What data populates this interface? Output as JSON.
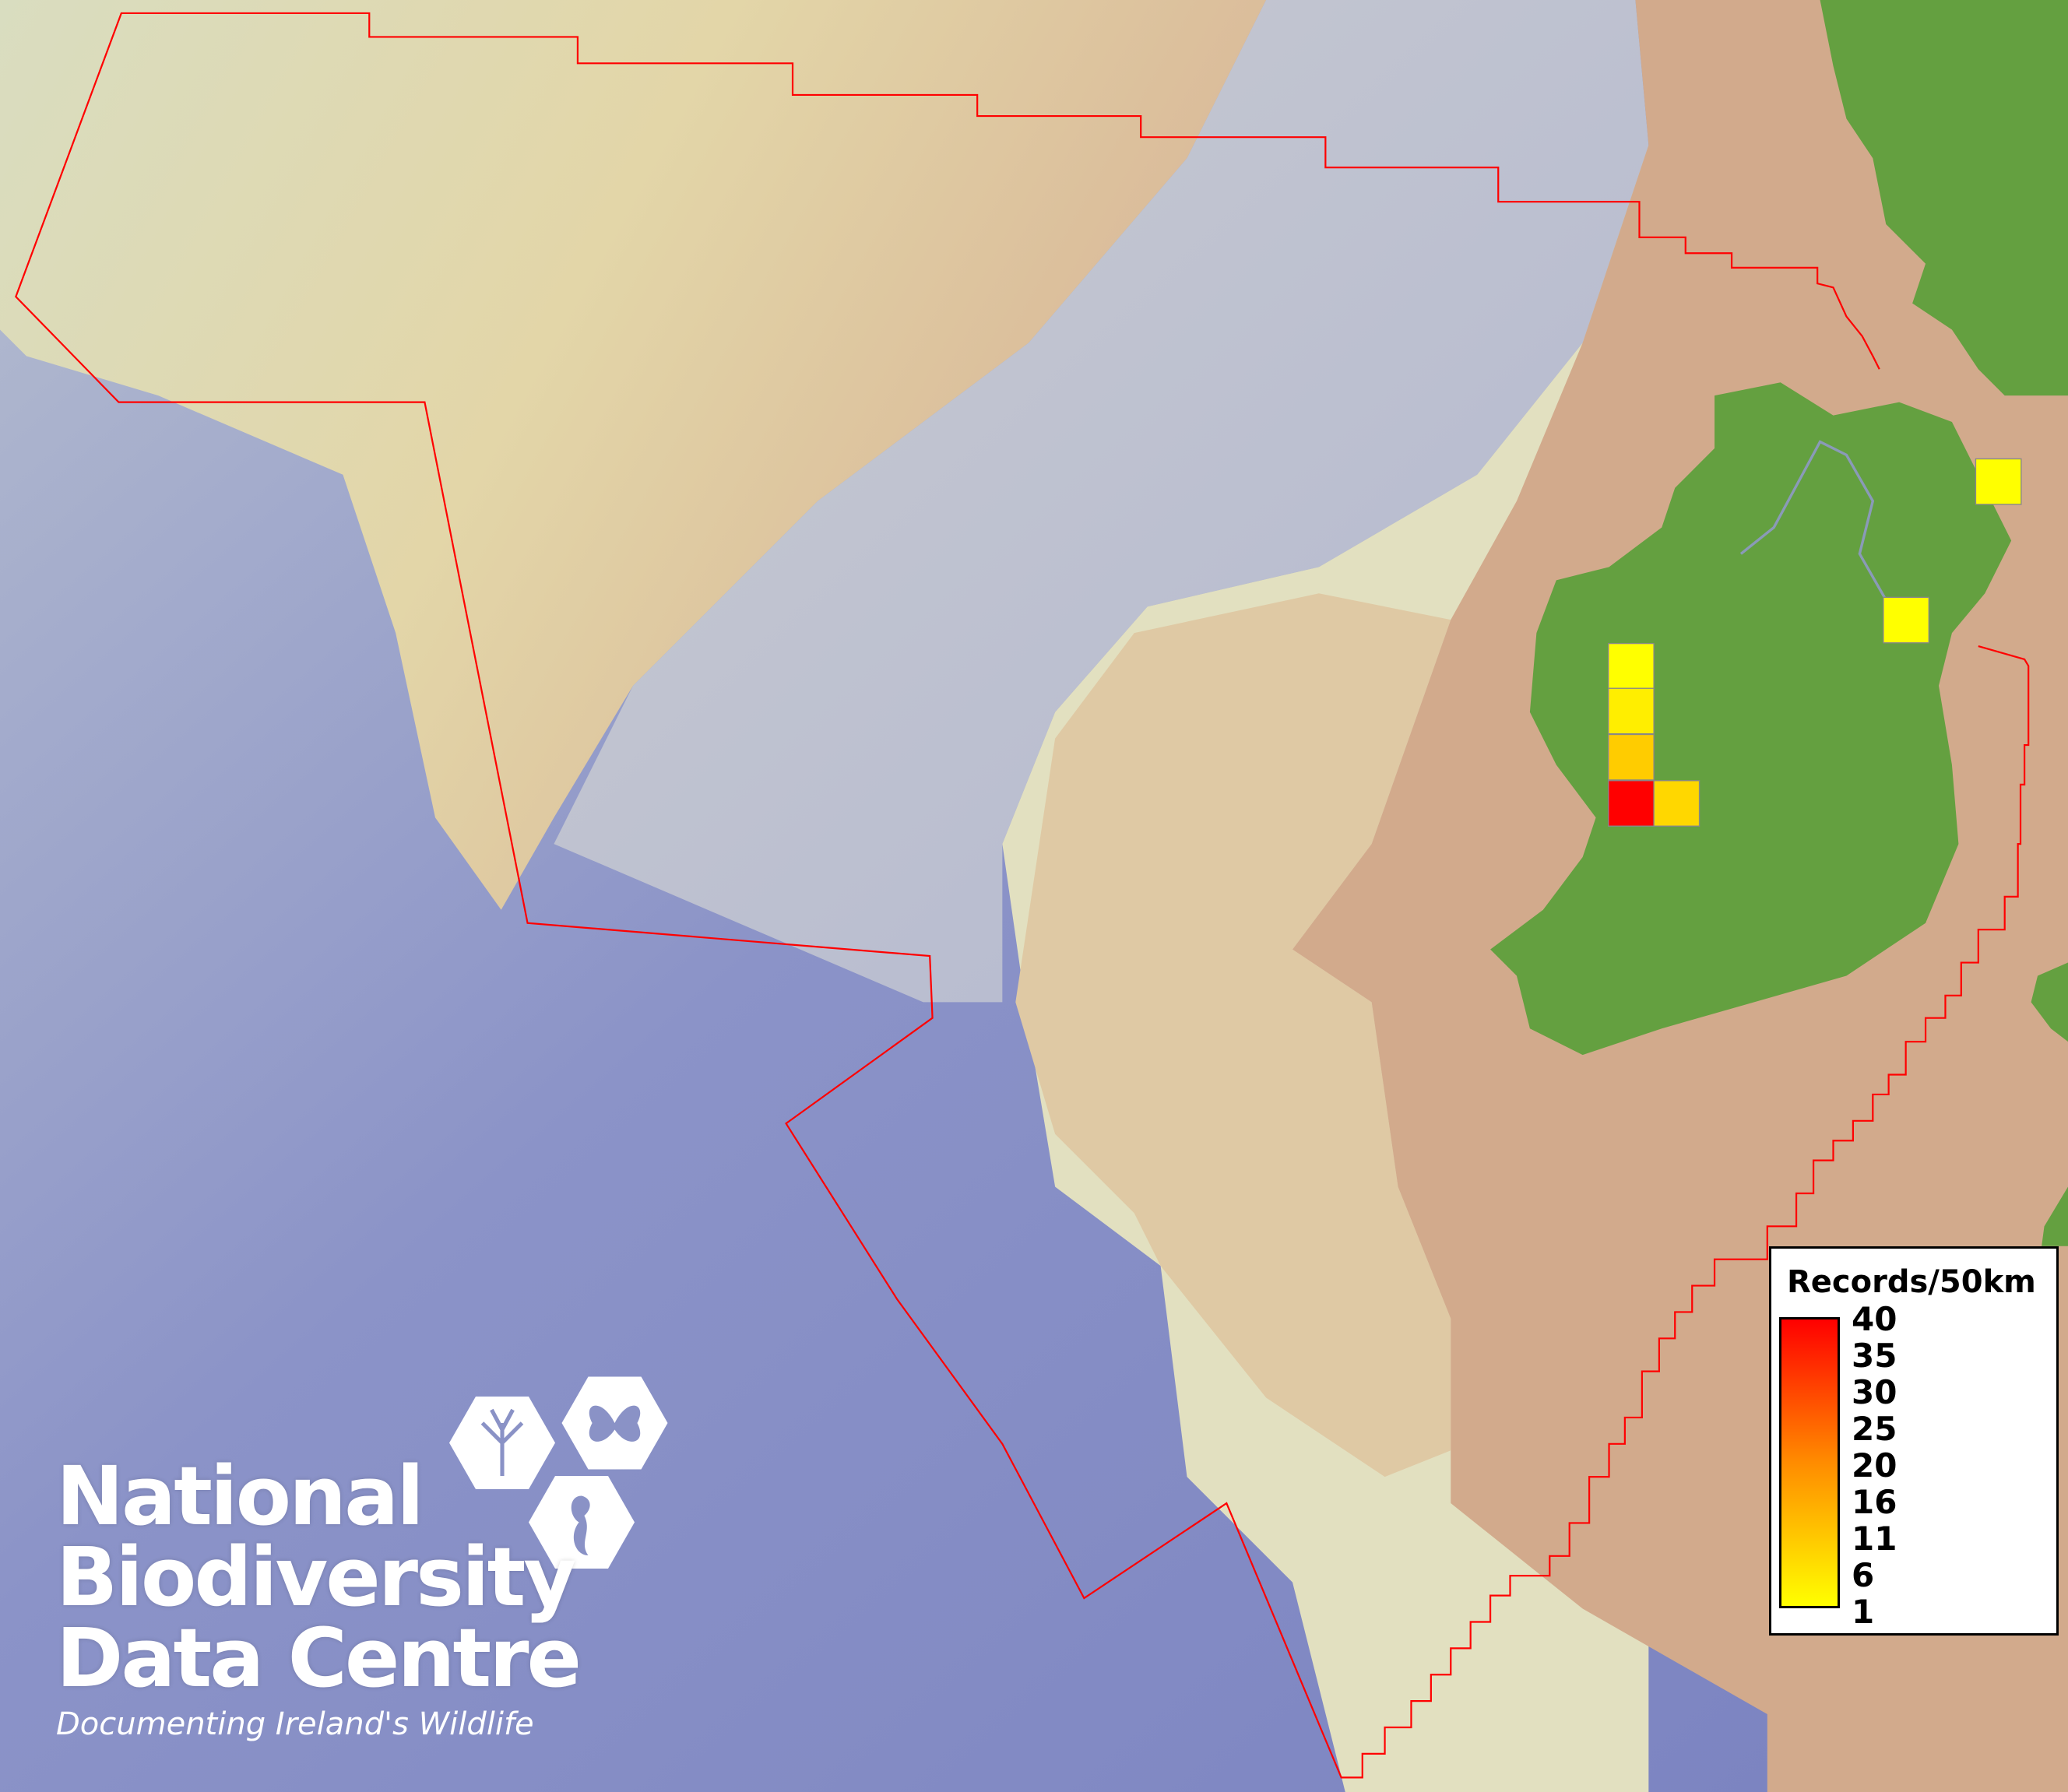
{
  "legend": {
    "title": "Records/50km",
    "labels": [
      "40",
      "35",
      "30",
      "25",
      "20",
      "16",
      "11",
      "6",
      "1"
    ],
    "gradient": {
      "low": "#ffff00",
      "mid": "#ff8c00",
      "high": "#ff0000"
    }
  },
  "grid_cells": [
    {
      "color": "#ffff00",
      "value": 1
    },
    {
      "color": "#ffee00",
      "value": 2
    },
    {
      "color": "#ffcc00",
      "value": 11
    },
    {
      "color": "#ff0000",
      "value": 40
    },
    {
      "color": "#ffd700",
      "value": 9
    },
    {
      "color": "#ffff00",
      "value": 1
    },
    {
      "color": "#ffff00",
      "value": 1
    }
  ],
  "logo": {
    "line1": "National",
    "line2": "Biodiversity",
    "line3": "Data Centre",
    "tagline": "Documenting Ireland's Wildlife"
  },
  "colors": {
    "boundary": "#ff0000",
    "land": "#64a040",
    "shelf": "#d2aa8c",
    "deep_sea": "#7f88c4",
    "slope": "#dcdcb4"
  }
}
